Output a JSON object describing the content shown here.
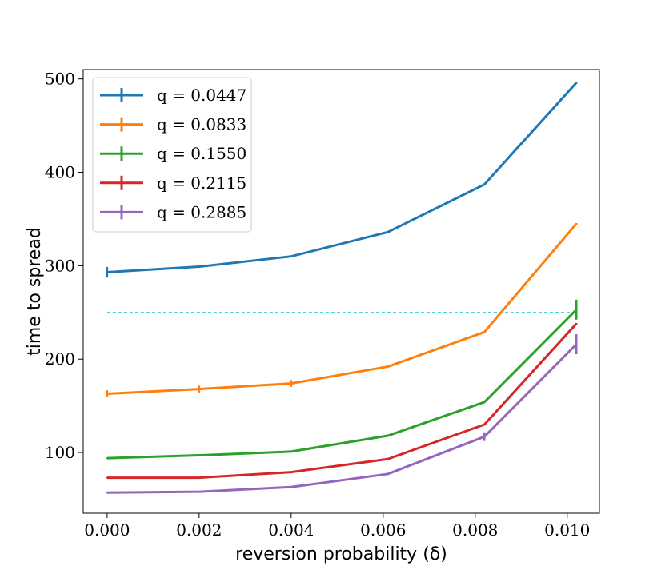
{
  "chart_data": {
    "type": "line",
    "title": "",
    "xlabel": "reversion probability (δ)",
    "ylabel": "time to spread",
    "x": [
      0.0,
      0.002,
      0.004,
      0.0061,
      0.0082,
      0.0102
    ],
    "xticks": [
      0.0,
      0.002,
      0.004,
      0.006,
      0.008,
      0.01
    ],
    "xtick_labels": [
      "0.000",
      "0.002",
      "0.004",
      "0.006",
      "0.008",
      "0.010"
    ],
    "yticks": [
      100,
      200,
      300,
      400,
      500
    ],
    "ytick_labels": [
      "100",
      "200",
      "300",
      "400",
      "500"
    ],
    "xlim": [
      -0.00052,
      0.0107
    ],
    "ylim": [
      35,
      510
    ],
    "grid": false,
    "legend_position": "top-left",
    "series": [
      {
        "name": "q = 0.0447",
        "color": "#1f77b4",
        "values": [
          293,
          299,
          310,
          336,
          387,
          496
        ],
        "errors": [
          5,
          0,
          0,
          0,
          0,
          0
        ]
      },
      {
        "name": "q = 0.0833",
        "color": "#ff7f0e",
        "values": [
          163,
          168,
          174,
          192,
          229,
          345
        ],
        "errors": [
          3,
          3,
          3,
          0,
          0,
          0
        ]
      },
      {
        "name": "q = 0.1550",
        "color": "#2ca02c",
        "values": [
          94,
          97,
          101,
          118,
          154,
          253
        ],
        "errors": [
          0,
          0,
          0,
          0,
          0,
          10
        ]
      },
      {
        "name": "q = 0.2115",
        "color": "#d62728",
        "values": [
          73,
          73,
          79,
          93,
          130,
          238
        ],
        "errors": [
          0,
          0,
          0,
          0,
          0,
          0
        ]
      },
      {
        "name": "q = 0.2885",
        "color": "#9467bd",
        "values": [
          57,
          58,
          63,
          77,
          117,
          216
        ],
        "errors": [
          0,
          0,
          0,
          0,
          4,
          10
        ]
      }
    ],
    "reference_line": {
      "y": 250,
      "color": "#17becf",
      "style": "dashed"
    }
  }
}
